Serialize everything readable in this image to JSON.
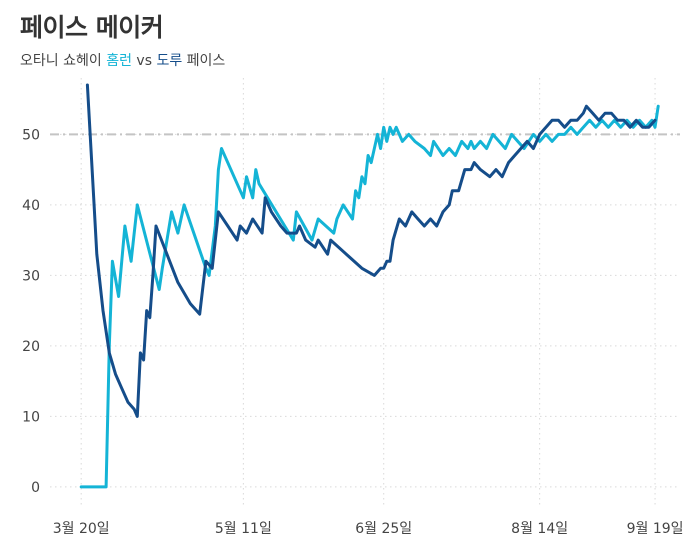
{
  "title": "페이스 메이커",
  "subtitle": {
    "prefix": "오타니 쇼헤이",
    "series1": "홈런",
    "vs": "vs",
    "series2": "도루",
    "suffix": "페이스"
  },
  "colors": {
    "home_runs": "#14b4d6",
    "stolen_bases": "#154d8a",
    "reference": "#c4c4c4",
    "grid": "#d9d9d9",
    "text": "#444444"
  },
  "chart_data": {
    "type": "line",
    "x_start_date": "3월 20일",
    "x_tick_labels": [
      "3월 20일",
      "5월 11일",
      "6월 25일",
      "8월 14일",
      "9월 19일"
    ],
    "x_ticks": [
      0,
      52,
      97,
      147,
      184
    ],
    "xlim": [
      -10,
      192
    ],
    "y_ticks": [
      0,
      10,
      20,
      30,
      40,
      50
    ],
    "ylim": [
      -3,
      58
    ],
    "reference_line": 50,
    "grid": true,
    "series": [
      {
        "name": "홈런",
        "color": "#14b4d6",
        "points": [
          [
            0,
            0
          ],
          [
            8,
            0
          ],
          [
            9,
            20
          ],
          [
            10,
            32
          ],
          [
            12,
            27
          ],
          [
            14,
            37
          ],
          [
            16,
            32
          ],
          [
            18,
            40
          ],
          [
            25,
            28
          ],
          [
            26,
            31
          ],
          [
            29,
            39
          ],
          [
            31,
            36
          ],
          [
            33,
            40
          ],
          [
            40,
            31
          ],
          [
            41,
            30
          ],
          [
            43,
            37
          ],
          [
            44,
            45
          ],
          [
            45,
            48
          ],
          [
            52,
            41
          ],
          [
            53,
            44
          ],
          [
            55,
            41
          ],
          [
            56,
            45
          ],
          [
            57,
            43
          ],
          [
            68,
            35
          ],
          [
            69,
            39
          ],
          [
            74,
            35
          ],
          [
            76,
            38
          ],
          [
            81,
            36
          ],
          [
            82,
            38
          ],
          [
            84,
            40
          ],
          [
            87,
            38
          ],
          [
            88,
            42
          ],
          [
            89,
            41
          ],
          [
            90,
            44
          ],
          [
            91,
            43
          ],
          [
            92,
            47
          ],
          [
            93,
            46
          ],
          [
            95,
            50
          ],
          [
            96,
            48
          ],
          [
            97,
            51
          ],
          [
            98,
            49
          ],
          [
            99,
            51
          ],
          [
            100,
            50
          ],
          [
            101,
            51
          ],
          [
            103,
            49
          ],
          [
            105,
            50
          ],
          [
            107,
            49
          ],
          [
            110,
            48
          ],
          [
            112,
            47
          ],
          [
            113,
            49
          ],
          [
            116,
            47
          ],
          [
            118,
            48
          ],
          [
            120,
            47
          ],
          [
            122,
            49
          ],
          [
            124,
            48
          ],
          [
            125,
            49
          ],
          [
            126,
            48
          ],
          [
            128,
            49
          ],
          [
            130,
            48
          ],
          [
            132,
            50
          ],
          [
            134,
            49
          ],
          [
            136,
            48
          ],
          [
            138,
            50
          ],
          [
            140,
            49
          ],
          [
            142,
            48
          ],
          [
            145,
            50
          ],
          [
            147,
            49
          ],
          [
            149,
            50
          ],
          [
            151,
            49
          ],
          [
            153,
            50
          ],
          [
            155,
            50
          ],
          [
            157,
            51
          ],
          [
            159,
            50
          ],
          [
            161,
            51
          ],
          [
            163,
            52
          ],
          [
            165,
            51
          ],
          [
            167,
            52
          ],
          [
            169,
            51
          ],
          [
            171,
            52
          ],
          [
            173,
            51
          ],
          [
            175,
            52
          ],
          [
            177,
            51
          ],
          [
            179,
            52
          ],
          [
            181,
            51
          ],
          [
            183,
            52
          ],
          [
            184,
            51
          ],
          [
            185,
            54
          ]
        ]
      },
      {
        "name": "도루",
        "color": "#154d8a",
        "points": [
          [
            2,
            57
          ],
          [
            4,
            41
          ],
          [
            5,
            33
          ],
          [
            7,
            25
          ],
          [
            9,
            19
          ],
          [
            11,
            16
          ],
          [
            13,
            14
          ],
          [
            15,
            12
          ],
          [
            17,
            11
          ],
          [
            18,
            10
          ],
          [
            19,
            19
          ],
          [
            20,
            18
          ],
          [
            21,
            25
          ],
          [
            22,
            24
          ],
          [
            23,
            30
          ],
          [
            24,
            37
          ],
          [
            31,
            29
          ],
          [
            35,
            26
          ],
          [
            38,
            24.5
          ],
          [
            40,
            32
          ],
          [
            42,
            31
          ],
          [
            44,
            39
          ],
          [
            47,
            37
          ],
          [
            50,
            35
          ],
          [
            51,
            37
          ],
          [
            53,
            36
          ],
          [
            54,
            37
          ],
          [
            55,
            38
          ],
          [
            58,
            36
          ],
          [
            59,
            41
          ],
          [
            61,
            39
          ],
          [
            64,
            37
          ],
          [
            66,
            36
          ],
          [
            69,
            36
          ],
          [
            70,
            37
          ],
          [
            72,
            35
          ],
          [
            75,
            34
          ],
          [
            76,
            35
          ],
          [
            79,
            33
          ],
          [
            80,
            35
          ],
          [
            85,
            33
          ],
          [
            90,
            31
          ],
          [
            94,
            30
          ],
          [
            96,
            31
          ],
          [
            97,
            31
          ],
          [
            98,
            32
          ],
          [
            99,
            32
          ],
          [
            100,
            35
          ],
          [
            102,
            38
          ],
          [
            104,
            37
          ],
          [
            106,
            39
          ],
          [
            108,
            38
          ],
          [
            110,
            37
          ],
          [
            112,
            38
          ],
          [
            114,
            37
          ],
          [
            116,
            39
          ],
          [
            118,
            40
          ],
          [
            119,
            42
          ],
          [
            121,
            42
          ],
          [
            123,
            45
          ],
          [
            125,
            45
          ],
          [
            126,
            46
          ],
          [
            128,
            45
          ],
          [
            131,
            44
          ],
          [
            133,
            45
          ],
          [
            135,
            44
          ],
          [
            137,
            46
          ],
          [
            139,
            47
          ],
          [
            141,
            48
          ],
          [
            143,
            49
          ],
          [
            145,
            48
          ],
          [
            147,
            50
          ],
          [
            149,
            51
          ],
          [
            151,
            52
          ],
          [
            153,
            52
          ],
          [
            155,
            51
          ],
          [
            157,
            52
          ],
          [
            159,
            52
          ],
          [
            161,
            53
          ],
          [
            162,
            54
          ],
          [
            164,
            53
          ],
          [
            166,
            52
          ],
          [
            168,
            53
          ],
          [
            170,
            53
          ],
          [
            172,
            52
          ],
          [
            174,
            52
          ],
          [
            176,
            51
          ],
          [
            178,
            52
          ],
          [
            180,
            51
          ],
          [
            182,
            51
          ],
          [
            184,
            52
          ]
        ]
      }
    ]
  }
}
